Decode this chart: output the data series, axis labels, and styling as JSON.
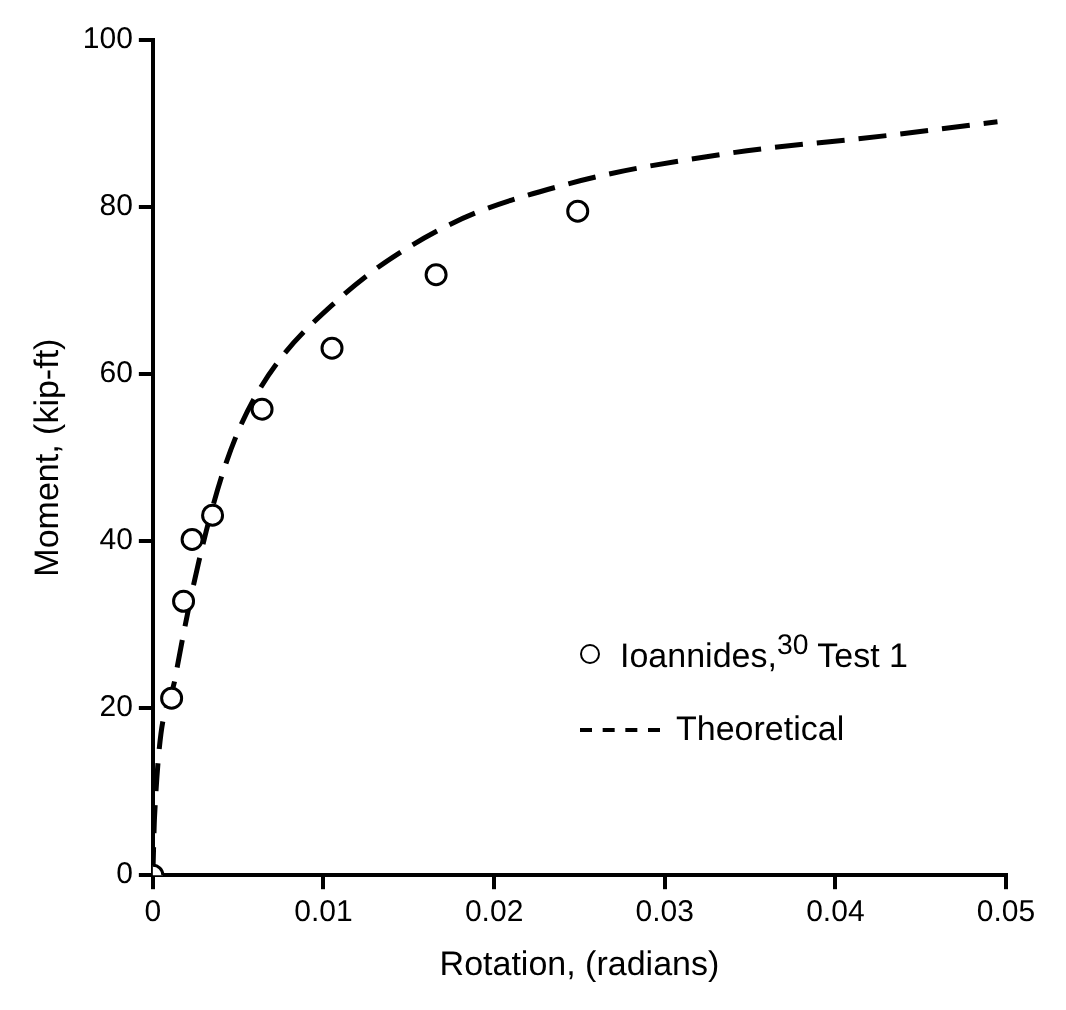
{
  "chart_data": {
    "type": "scatter",
    "xlabel": "Rotation, (radians)",
    "ylabel": "Moment, (kip-ft)",
    "xlim": [
      0,
      0.05
    ],
    "xticks": [
      0,
      0.01,
      0.02,
      0.03,
      0.04,
      0.05
    ],
    "ylim": [
      0,
      100
    ],
    "yticks": [
      0,
      20,
      40,
      60,
      80,
      100
    ],
    "grid": false,
    "legend": "right",
    "series": [
      {
        "name": "Ioannides,$^{30}$ Test 1",
        "marker": "circle",
        "color": "#000000",
        "x": [
          0,
          0.0011,
          0.0018,
          0.0023,
          0.0035,
          0.0064,
          0.0105,
          0.0166,
          0.0249
        ],
        "values": [
          0,
          21.2,
          32.8,
          40.2,
          43.1,
          55.8,
          63.1,
          71.9,
          79.5
        ]
      },
      {
        "name": "Theoretical",
        "type": "line",
        "marker": "none",
        "line_style": "dashed",
        "color": "#000000",
        "x": [
          0,
          0.0001,
          0.0013,
          0.0027,
          0.0043,
          0.0062,
          0.0108,
          0.0171,
          0.0242,
          0.0333,
          0.0432,
          0.0495
        ],
        "values": [
          0,
          7,
          23.5,
          37.6,
          49.4,
          58,
          68.8,
          77.6,
          82.7,
          86.3,
          88.6,
          90.2
        ]
      }
    ]
  }
}
